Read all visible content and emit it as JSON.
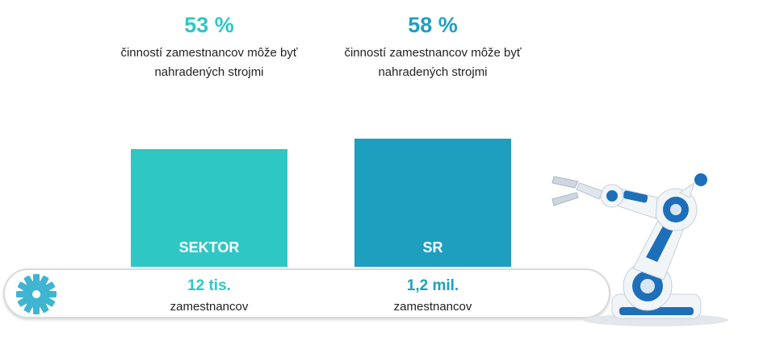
{
  "colors": {
    "sektor": "#2ec7c4",
    "sr": "#1f9fc0",
    "gear": "#3fb5d1",
    "robot_white": "#f2f5f8",
    "robot_blue": "#1c6fb8"
  },
  "icons": {
    "track_icon": "gear-icon",
    "illustration": "robot-arm-icon"
  },
  "chart_data": {
    "type": "bar",
    "categories": [
      "SEKTOR",
      "SR"
    ],
    "values": [
      53,
      58
    ],
    "unit": "%",
    "value_labels": [
      "53 %",
      "58 %"
    ],
    "value_descriptions": [
      [
        "činností zamestnancov môže byť",
        "nahradených strojmi"
      ],
      [
        "činností zamestnancov môže byť",
        "nahradených strojmi"
      ]
    ],
    "employee_counts": [
      "12 tis.",
      "1,2 mil."
    ],
    "employee_unit": "zamestnancov"
  }
}
